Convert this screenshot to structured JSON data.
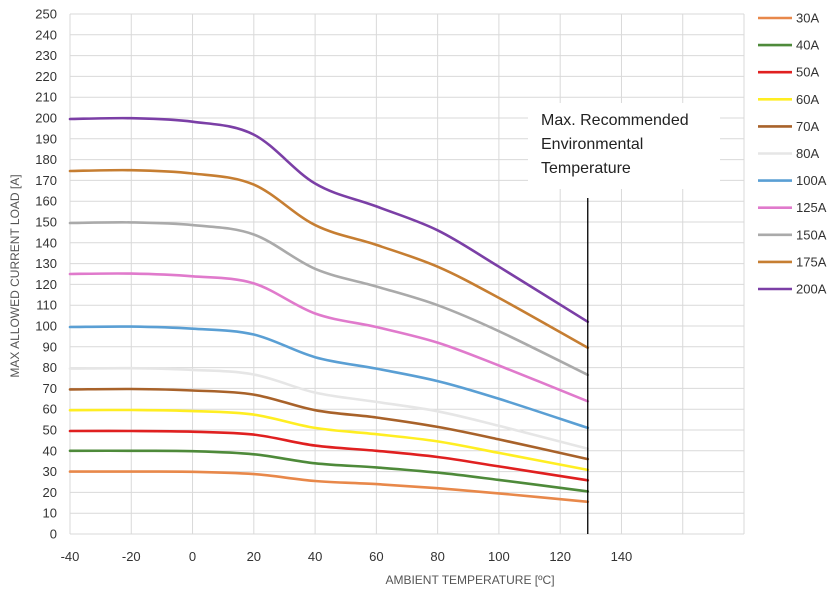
{
  "chart_data": {
    "type": "line",
    "title": "",
    "xlabel": "AMBIENT TEMPERATURE [ºC]",
    "ylabel": "MAX ALLOWED CURRENT LOAD [A]",
    "xlim": [
      -40,
      180
    ],
    "ylim": [
      0,
      250
    ],
    "x_ticks": [
      "-40",
      "-20",
      "0",
      "20",
      "40",
      "60",
      "80",
      "100",
      "120",
      "140"
    ],
    "y_ticks": [
      "0",
      "10",
      "20",
      "30",
      "40",
      "50",
      "60",
      "70",
      "80",
      "90",
      "100",
      "110",
      "120",
      "130",
      "140",
      "150",
      "160",
      "170",
      "180",
      "190",
      "200",
      "210",
      "220",
      "230",
      "240",
      "250"
    ],
    "grid": true,
    "legend_position": "right",
    "annotation": {
      "lines": [
        "Max. Recommended",
        "Environmental",
        "Temperature"
      ],
      "x": 129
    },
    "series": [
      {
        "name": "30A",
        "color": "#E8884A",
        "x": [
          -40,
          -20,
          0,
          20,
          40,
          60,
          80,
          100,
          129
        ],
        "values": [
          30,
          30,
          29.9,
          28.8,
          25.5,
          24,
          22,
          19.5,
          15.5
        ]
      },
      {
        "name": "40A",
        "color": "#4E8A3A",
        "x": [
          -40,
          -20,
          0,
          20,
          40,
          60,
          80,
          100,
          129
        ],
        "values": [
          40,
          40,
          39.8,
          38.3,
          34,
          32,
          29.5,
          26,
          20.5
        ]
      },
      {
        "name": "50A",
        "color": "#E02020",
        "x": [
          -40,
          -20,
          0,
          20,
          40,
          60,
          80,
          100,
          129
        ],
        "values": [
          49.5,
          49.5,
          49.2,
          47.8,
          42.5,
          40,
          37,
          32.5,
          25.8
        ]
      },
      {
        "name": "60A",
        "color": "#FFEE22",
        "x": [
          -40,
          -20,
          0,
          20,
          40,
          60,
          80,
          100,
          129
        ],
        "values": [
          59.5,
          59.6,
          59.1,
          57.4,
          51,
          48,
          44.5,
          39,
          30.8
        ]
      },
      {
        "name": "70A",
        "color": "#A8622A",
        "x": [
          -40,
          -20,
          0,
          20,
          40,
          60,
          80,
          100,
          129
        ],
        "values": [
          69.5,
          69.7,
          69,
          67,
          59.5,
          56,
          51.5,
          45.5,
          36
        ]
      },
      {
        "name": "80A",
        "color": "#E6E6E6",
        "x": [
          -40,
          -20,
          0,
          20,
          40,
          60,
          80,
          100,
          129
        ],
        "values": [
          79.5,
          79.7,
          78.9,
          76.7,
          68,
          63.5,
          59,
          52,
          41
        ]
      },
      {
        "name": "100A",
        "color": "#5A9FD4",
        "x": [
          -40,
          -20,
          0,
          20,
          40,
          60,
          80,
          100,
          129
        ],
        "values": [
          99.5,
          99.7,
          98.7,
          95.9,
          85,
          79.5,
          73.5,
          65,
          51
        ]
      },
      {
        "name": "125A",
        "color": "#E07ACC",
        "x": [
          -40,
          -20,
          0,
          20,
          40,
          60,
          80,
          100,
          129
        ],
        "values": [
          125,
          125.2,
          123.9,
          120.5,
          106,
          99.5,
          92,
          81,
          63.8
        ]
      },
      {
        "name": "150A",
        "color": "#AAAAAA",
        "x": [
          -40,
          -20,
          0,
          20,
          40,
          60,
          80,
          100,
          129
        ],
        "values": [
          149.5,
          149.8,
          148.5,
          144,
          127.5,
          119,
          110,
          97.5,
          76.5
        ]
      },
      {
        "name": "175A",
        "color": "#C67E32",
        "x": [
          -40,
          -20,
          0,
          20,
          40,
          60,
          80,
          100,
          129
        ],
        "values": [
          174.5,
          174.9,
          173.3,
          168,
          148.5,
          139,
          128.5,
          113.5,
          89.5
        ]
      },
      {
        "name": "200A",
        "color": "#7B3FA6",
        "x": [
          -40,
          -20,
          0,
          20,
          40,
          60,
          80,
          100,
          129
        ],
        "values": [
          199.5,
          199.9,
          198.2,
          192,
          168.5,
          157.5,
          146,
          128.5,
          102
        ]
      }
    ]
  }
}
